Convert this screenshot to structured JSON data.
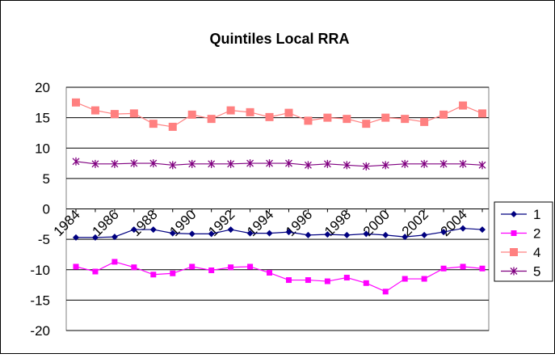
{
  "chart_data": {
    "type": "line",
    "title": "Quintiles Local RRA",
    "categories": [
      "1984",
      null,
      "1986",
      null,
      "1988",
      null,
      "1990",
      null,
      "1992",
      null,
      "1994",
      null,
      "1996",
      null,
      "1998",
      null,
      "2000",
      null,
      "2002",
      null,
      "2004",
      null
    ],
    "series": [
      {
        "name": "1",
        "color": "#000080",
        "marker": "diamond",
        "values": [
          -4.7,
          -4.7,
          -4.6,
          -3.4,
          -3.4,
          -4.0,
          -4.1,
          -4.1,
          -3.4,
          -4.0,
          -4.0,
          -3.8,
          -4.3,
          -4.2,
          -4.3,
          -4.1,
          -4.3,
          -4.6,
          -4.3,
          -3.8,
          -3.2,
          -3.4
        ]
      },
      {
        "name": "2",
        "color": "#ff00ff",
        "marker": "square",
        "values": [
          -9.5,
          -10.3,
          -8.7,
          -9.6,
          -10.8,
          -10.6,
          -9.5,
          -10.1,
          -9.6,
          -9.5,
          -10.5,
          -11.7,
          -11.7,
          -11.9,
          -11.3,
          -12.2,
          -13.6,
          -11.5,
          -11.5,
          -9.8,
          -9.5,
          -9.8
        ]
      },
      {
        "name": "4",
        "color": "#ff8080",
        "marker": "bigsquare",
        "values": [
          17.5,
          16.2,
          15.6,
          15.7,
          14.0,
          13.5,
          15.5,
          14.8,
          16.2,
          15.9,
          15.1,
          15.8,
          14.5,
          15.0,
          14.8,
          14.0,
          15.0,
          14.8,
          14.3,
          15.5,
          17.0,
          15.7
        ]
      },
      {
        "name": "5",
        "color": "#800080",
        "marker": "star",
        "values": [
          7.8,
          7.4,
          7.4,
          7.5,
          7.5,
          7.2,
          7.4,
          7.4,
          7.4,
          7.5,
          7.5,
          7.5,
          7.2,
          7.4,
          7.2,
          7.0,
          7.2,
          7.4,
          7.4,
          7.4,
          7.4,
          7.2
        ]
      }
    ],
    "ylim": [
      -20,
      20
    ],
    "yticks": [
      -20,
      -15,
      -10,
      -5,
      0,
      5,
      10,
      15,
      20
    ],
    "grid": true,
    "legend": "right"
  }
}
